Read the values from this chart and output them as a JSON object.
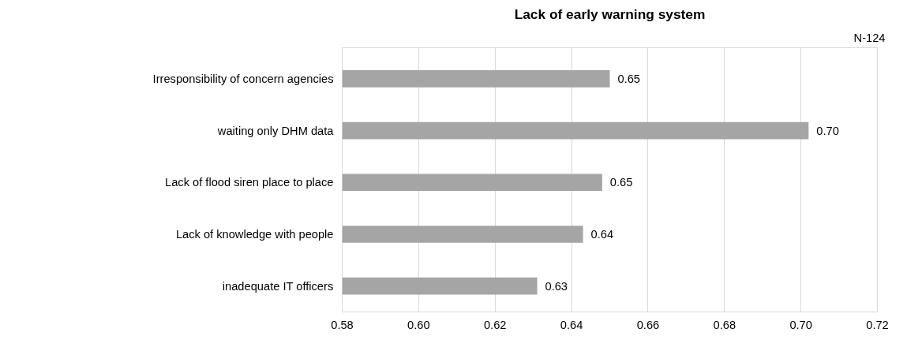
{
  "chart_data": {
    "type": "bar",
    "orientation": "horizontal",
    "title": "Lack of early warning system",
    "annotations": [
      "N-124"
    ],
    "categories": [
      "Irresponsibility of concern agencies",
      "waiting only DHM data",
      "Lack of flood siren place to place",
      "Lack of knowledge with people",
      "inadequate IT officers"
    ],
    "values": [
      0.65,
      0.702,
      0.648,
      0.643,
      0.631
    ],
    "value_labels": [
      "0.65",
      "0.70",
      "0.65",
      "0.64",
      "0.63"
    ],
    "color": "#a5a5a5",
    "xlim": [
      0.58,
      0.72
    ],
    "xticks": [
      "0.58",
      "0.60",
      "0.62",
      "0.64",
      "0.66",
      "0.68",
      "0.70",
      "0.72"
    ],
    "grid": "x"
  }
}
